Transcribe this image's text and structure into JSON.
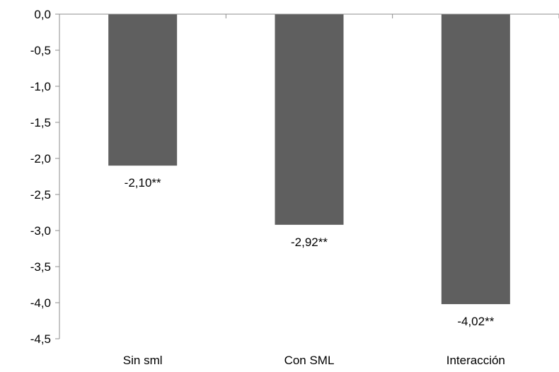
{
  "chart_data": {
    "type": "bar",
    "title": "",
    "xlabel": "",
    "ylabel": "",
    "categories": [
      "Sin sml",
      "Con SML",
      "Interacción"
    ],
    "values": [
      -2.1,
      -2.92,
      -4.02
    ],
    "data_labels": [
      "-2,10**",
      "-2,92**",
      "-4,02**"
    ],
    "ylim": [
      -4.5,
      0.0
    ],
    "y_ticks": [
      0.0,
      -0.5,
      -1.0,
      -1.5,
      -2.0,
      -2.5,
      -3.0,
      -3.5,
      -4.0,
      -4.5
    ],
    "y_tick_labels": [
      "0,0",
      "-0,5",
      "-1,0",
      "-1,5",
      "-2,0",
      "-2,5",
      "-3,0",
      "-3,5",
      "-4,0",
      "-4,5"
    ],
    "grid": false,
    "legend": "none",
    "bar_color": "#5f5f5f",
    "axis_color": "#8c8c8c"
  }
}
